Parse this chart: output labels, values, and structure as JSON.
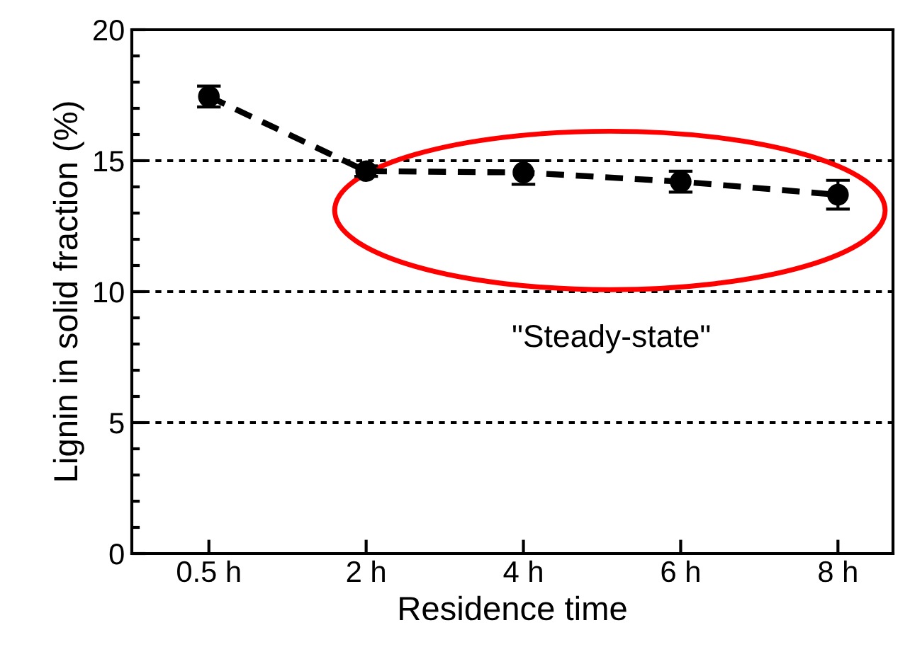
{
  "chart_data": {
    "type": "line",
    "xlabel": "Residence time",
    "ylabel": "Lignin in solid fraction (%)",
    "categories": [
      "0.5 h",
      "2 h",
      "4 h",
      "6 h",
      "8 h"
    ],
    "series": [
      {
        "color": "#000000",
        "values": [
          17.45,
          14.6,
          14.55,
          14.2,
          13.7
        ],
        "errors": [
          0.4,
          0.2,
          0.45,
          0.4,
          0.55
        ]
      }
    ],
    "ylim": [
      0,
      20
    ],
    "yticks": [
      0,
      5,
      10,
      15,
      20
    ],
    "grid": "y",
    "marker": "circle",
    "line_style": "dashed",
    "annotations": [
      "\"Steady-state\""
    ]
  }
}
